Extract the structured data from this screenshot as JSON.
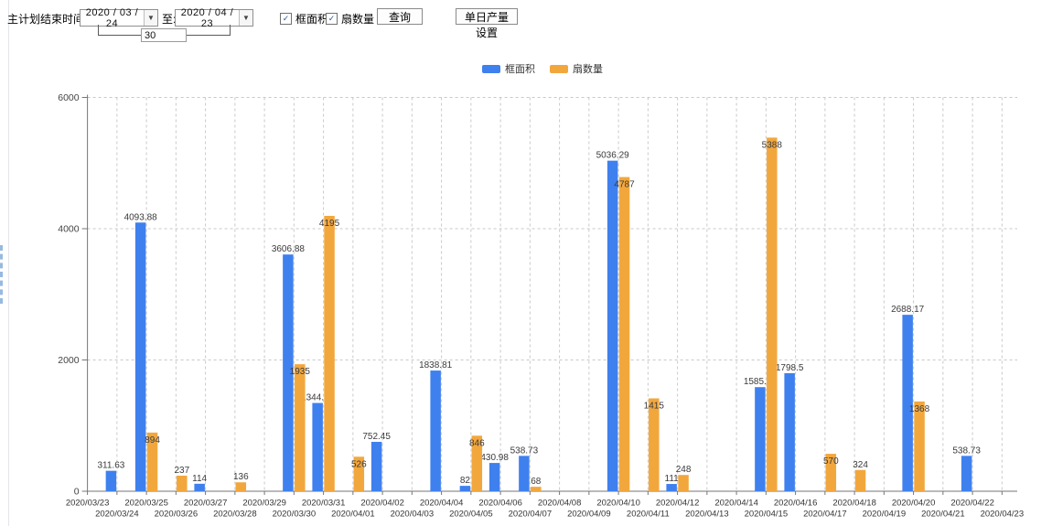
{
  "toolbar": {
    "label": "主计划结束时间:",
    "date_from": "2020 / 03 / 24",
    "to_label": "至:",
    "date_to": "2020 / 04 / 23",
    "days_between": "30",
    "checkbox_frame": "框面积",
    "checkbox_fan": "扇数量",
    "query_button": "查询",
    "daily_output_button": "单日产量设置"
  },
  "legend": [
    {
      "label": "框面积",
      "color": "#3f80ef"
    },
    {
      "label": "扇数量",
      "color": "#f2a73d"
    }
  ],
  "colors": {
    "bar_blue": "#3f80ef",
    "bar_orange": "#f2a73d",
    "gridline": "#c9c9c9",
    "axis": "#767676",
    "tick_label": "#444444",
    "value_label": "#3a3a3a"
  },
  "chart_data": {
    "type": "bar",
    "title": "",
    "xlabel": "",
    "ylabel": "",
    "ylim": [
      0,
      6000
    ],
    "yticks": [
      0,
      2000,
      4000,
      6000
    ],
    "grid": true,
    "legend_position": "top",
    "categories": [
      "2020/03/23",
      "2020/03/24",
      "2020/03/25",
      "2020/03/26",
      "2020/03/27",
      "2020/03/28",
      "2020/03/29",
      "2020/03/30",
      "2020/03/31",
      "2020/04/01",
      "2020/04/02",
      "2020/04/03",
      "2020/04/04",
      "2020/04/05",
      "2020/04/06",
      "2020/04/07",
      "2020/04/08",
      "2020/04/09",
      "2020/04/10",
      "2020/04/11",
      "2020/04/12",
      "2020/04/13",
      "2020/04/14",
      "2020/04/15",
      "2020/04/16",
      "2020/04/17",
      "2020/04/18",
      "2020/04/19",
      "2020/04/20",
      "2020/04/21",
      "2020/04/22",
      "2020/04/23"
    ],
    "series": [
      {
        "name": "框面积",
        "color": "#3f80ef",
        "values": [
          null,
          311.63,
          4093.88,
          null,
          114,
          null,
          null,
          3606.88,
          1344.95,
          null,
          752.45,
          null,
          1838.81,
          82,
          430.98,
          538.73,
          null,
          null,
          5036.29,
          null,
          111,
          null,
          null,
          1585.96,
          1798.5,
          null,
          null,
          null,
          2688.17,
          null,
          538.73,
          null
        ]
      },
      {
        "name": "扇数量",
        "color": "#f2a73d",
        "values": [
          null,
          null,
          894,
          237,
          null,
          136,
          null,
          1935,
          4195,
          526,
          null,
          null,
          null,
          846,
          null,
          68,
          null,
          null,
          4787,
          1415,
          248,
          null,
          null,
          5388,
          null,
          570,
          324,
          null,
          1368,
          null,
          null,
          null
        ]
      }
    ]
  }
}
